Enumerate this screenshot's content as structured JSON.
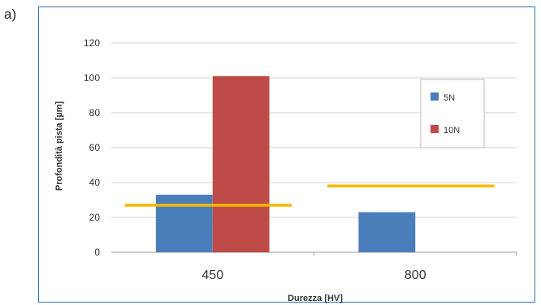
{
  "panel_label": "a)",
  "chart_data": {
    "type": "bar",
    "title": "",
    "xlabel": "Durezza [HV]",
    "ylabel": "Profondità pista [µm]",
    "ylim": [
      0,
      120
    ],
    "yticks": [
      0,
      20,
      40,
      60,
      80,
      100,
      120
    ],
    "grid": true,
    "legend_position": "right",
    "categories": [
      "450",
      "800"
    ],
    "series": [
      {
        "name": "5N",
        "values": [
          33,
          23
        ],
        "color": "#4a7ebb"
      },
      {
        "name": "10N",
        "values": [
          101,
          null
        ],
        "color": "#be4b48"
      }
    ],
    "reference_lines": [
      {
        "category": "450",
        "value": 27,
        "color": "#f5b800"
      },
      {
        "category": "800",
        "value": 38,
        "color": "#f5b800"
      }
    ]
  }
}
